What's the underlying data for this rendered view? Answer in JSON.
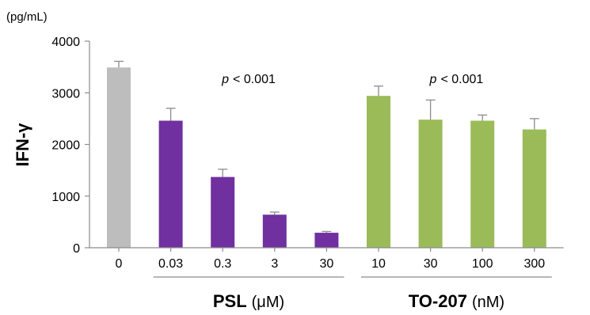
{
  "chart_data": {
    "type": "bar",
    "y_unit": "(pg/mL)",
    "ylabel": "IFN-γ",
    "ylim": [
      0,
      4000
    ],
    "yticks": [
      0,
      1000,
      2000,
      3000,
      4000
    ],
    "categories": [
      "0",
      "0.03",
      "0.3",
      "3",
      "30",
      "10",
      "30",
      "100",
      "300"
    ],
    "values": [
      3490,
      2460,
      1370,
      640,
      290,
      2940,
      2480,
      2460,
      2290
    ],
    "errors": [
      120,
      240,
      150,
      50,
      25,
      190,
      380,
      110,
      210
    ],
    "bar_colors": [
      "#bdbdbd",
      "#7030a0",
      "#7030a0",
      "#7030a0",
      "#7030a0",
      "#9bbb59",
      "#9bbb59",
      "#9bbb59",
      "#9bbb59"
    ],
    "groups": [
      {
        "bold": "PSL",
        "unit": "(μM)",
        "p_prefix": "p",
        "p_suffix": "< 0.001",
        "bars": [
          1,
          4
        ]
      },
      {
        "bold": "TO-207",
        "unit": "(nM)",
        "p_prefix": "p",
        "p_suffix": "< 0.001",
        "bars": [
          5,
          8
        ]
      }
    ],
    "grid": false,
    "legend": "none"
  }
}
